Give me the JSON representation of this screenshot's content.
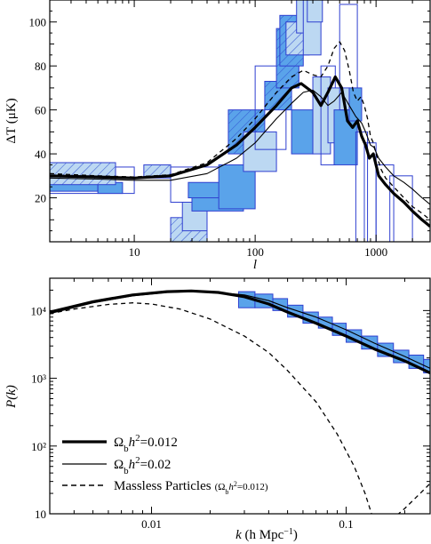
{
  "chart_data": [
    {
      "type": "line",
      "xlabel": "l",
      "ylabel_main": "ΔT",
      "ylabel_unit": " (μK)",
      "x_scale": "log",
      "xlim": [
        2,
        2800
      ],
      "ylim": [
        0,
        110
      ],
      "xtick_labels": [
        "10",
        "100",
        "1000"
      ],
      "xticks": [
        10,
        100,
        1000
      ],
      "ytick_labels": [
        "20",
        "40",
        "60",
        "80",
        "100"
      ],
      "yticks": [
        20,
        40,
        60,
        80,
        100
      ],
      "series": [
        {
          "style": "thick",
          "x": [
            2,
            5,
            10,
            20,
            40,
            70,
            100,
            150,
            200,
            240,
            300,
            350,
            400,
            460,
            520,
            580,
            640,
            700,
            760,
            820,
            880,
            950,
            1050,
            1200,
            1400,
            1700,
            2000,
            2400,
            2800
          ],
          "y": [
            30,
            29.5,
            29,
            30,
            35,
            44,
            52,
            62,
            70,
            72,
            68,
            62,
            68,
            75,
            70,
            55,
            52,
            55,
            48,
            44,
            38,
            40,
            30,
            26,
            22,
            18,
            14,
            10,
            7
          ]
        },
        {
          "style": "thin",
          "x": [
            2,
            5,
            10,
            20,
            40,
            70,
            100,
            150,
            200,
            250,
            300,
            350,
            400,
            450,
            520,
            600,
            680,
            760,
            820,
            900,
            960,
            1050,
            1200,
            1400,
            1700,
            2000,
            2400,
            2800
          ],
          "y": [
            29,
            28.5,
            28,
            28,
            31,
            38,
            45,
            56,
            63,
            68,
            69,
            66,
            62,
            64,
            68,
            62,
            57,
            54,
            50,
            44,
            43,
            38,
            34,
            30,
            27,
            24,
            20,
            17
          ]
        },
        {
          "style": "dashed",
          "x": [
            2,
            5,
            10,
            20,
            40,
            70,
            100,
            150,
            200,
            250,
            300,
            350,
            400,
            450,
            500,
            550,
            600,
            650,
            700,
            750,
            800,
            850,
            900,
            950,
            1000,
            1100,
            1200,
            1400,
            1700,
            2000,
            2400,
            2800
          ],
          "y": [
            31,
            30,
            29.5,
            30.5,
            36,
            47,
            56,
            68,
            75,
            78,
            76,
            75,
            80,
            88,
            91,
            87,
            78,
            68,
            64,
            66,
            62,
            56,
            48,
            45,
            40,
            33,
            29,
            25,
            20,
            16,
            13,
            10
          ]
        }
      ],
      "data_boxes": [
        {
          "x": [
            2,
            5
          ],
          "y": [
            23,
            34
          ],
          "fill": "medium",
          "hatch": false
        },
        {
          "x": [
            2,
            10
          ],
          "y": [
            22,
            34
          ],
          "fill": "none",
          "hatch": false
        },
        {
          "x": [
            5,
            8
          ],
          "y": [
            22,
            27
          ],
          "fill": "medium",
          "hatch": false
        },
        {
          "x": [
            2,
            7
          ],
          "y": [
            26,
            36
          ],
          "fill": "light",
          "hatch": true
        },
        {
          "x": [
            12,
            20
          ],
          "y": [
            29,
            35
          ],
          "fill": "light",
          "hatch": true
        },
        {
          "x": [
            20,
            40
          ],
          "y": [
            0,
            11
          ],
          "fill": "light",
          "hatch": true
        },
        {
          "x": [
            25,
            40
          ],
          "y": [
            5,
            18
          ],
          "fill": "light",
          "hatch": false
        },
        {
          "x": [
            20,
            70
          ],
          "y": [
            18,
            34
          ],
          "fill": "none",
          "hatch": false
        },
        {
          "x": [
            30,
            80
          ],
          "y": [
            14,
            25
          ],
          "fill": "medium",
          "hatch": false
        },
        {
          "x": [
            28,
            70
          ],
          "y": [
            20,
            27
          ],
          "fill": "medium",
          "hatch": false
        },
        {
          "x": [
            50,
            100
          ],
          "y": [
            15,
            35
          ],
          "fill": "medium",
          "hatch": false
        },
        {
          "x": [
            60,
            120
          ],
          "y": [
            40,
            60
          ],
          "fill": "medium",
          "hatch": true
        },
        {
          "x": [
            80,
            150
          ],
          "y": [
            32,
            50
          ],
          "fill": "light",
          "hatch": false
        },
        {
          "x": [
            100,
            180
          ],
          "y": [
            42,
            80
          ],
          "fill": "none",
          "hatch": false
        },
        {
          "x": [
            120,
            200
          ],
          "y": [
            60,
            73
          ],
          "fill": "medium",
          "hatch": true
        },
        {
          "x": [
            150,
            230
          ],
          "y": [
            70,
            97
          ],
          "fill": "medium",
          "hatch": true
        },
        {
          "x": [
            160,
            250
          ],
          "y": [
            80,
            103
          ],
          "fill": "medium",
          "hatch": true
        },
        {
          "x": [
            180,
            280
          ],
          "y": [
            85,
            100
          ],
          "fill": "light",
          "hatch": true
        },
        {
          "x": [
            200,
            300
          ],
          "y": [
            40,
            60
          ],
          "fill": "medium",
          "hatch": false
        },
        {
          "x": [
            220,
            330
          ],
          "y": [
            95,
            110
          ],
          "fill": "light",
          "hatch": false
        },
        {
          "x": [
            250,
            350
          ],
          "y": [
            85,
            110
          ],
          "fill": "light",
          "hatch": false
        },
        {
          "x": [
            270,
            360
          ],
          "y": [
            100,
            110
          ],
          "fill": "light",
          "hatch": false
        },
        {
          "x": [
            300,
            420
          ],
          "y": [
            40,
            75
          ],
          "fill": "light",
          "hatch": false
        },
        {
          "x": [
            350,
            460
          ],
          "y": [
            35,
            80
          ],
          "fill": "none",
          "hatch": false
        },
        {
          "x": [
            400,
            600
          ],
          "y": [
            45,
            70
          ],
          "fill": "light",
          "hatch": false
        },
        {
          "x": [
            450,
            700
          ],
          "y": [
            35,
            60
          ],
          "fill": "medium",
          "hatch": false
        },
        {
          "x": [
            500,
            700
          ],
          "y": [
            60,
            108
          ],
          "fill": "none",
          "hatch": false
        },
        {
          "x": [
            600,
            760
          ],
          "y": [
            55,
            70
          ],
          "fill": "medium",
          "hatch": false
        },
        {
          "x": [
            680,
            850
          ],
          "y": [
            0,
            50
          ],
          "fill": "none",
          "hatch": false
        },
        {
          "x": [
            800,
            1000
          ],
          "y": [
            0,
            45
          ],
          "fill": "none",
          "hatch": false
        },
        {
          "x": [
            1000,
            1400
          ],
          "y": [
            0,
            35
          ],
          "fill": "none",
          "hatch": false
        },
        {
          "x": [
            1300,
            2000
          ],
          "y": [
            0,
            30
          ],
          "fill": "none",
          "hatch": false
        }
      ]
    },
    {
      "type": "line",
      "xlabel": "k (h Mpc⁻¹)",
      "xlabel_k": "k",
      "xlabel_rest": " (h Mpc",
      "xlabel_sup": "−1",
      "xlabel_close": ")",
      "ylabel": "P(k)",
      "x_scale": "log",
      "y_scale": "log",
      "xlim": [
        0.003,
        0.27
      ],
      "ylim": [
        10,
        30000
      ],
      "xtick_labels": [
        "0.01",
        "0.1"
      ],
      "xticks": [
        0.01,
        0.1
      ],
      "ytick_labels": [
        "10",
        "10²",
        "10³",
        "10⁴"
      ],
      "yticks": [
        10,
        100,
        1000,
        10000
      ],
      "legend_position": "bottom-left",
      "series": [
        {
          "name": "Ωbh²=0.012",
          "style": "thick",
          "x": [
            0.003,
            0.005,
            0.008,
            0.012,
            0.016,
            0.022,
            0.03,
            0.04,
            0.05,
            0.07,
            0.1,
            0.14,
            0.2,
            0.27
          ],
          "y": [
            9500,
            13500,
            17000,
            19000,
            19500,
            18500,
            16000,
            12500,
            9500,
            6500,
            4200,
            2700,
            1800,
            1200
          ]
        },
        {
          "name": "Ωbh²=0.02",
          "style": "thin",
          "x": [
            0.003,
            0.005,
            0.008,
            0.012,
            0.016,
            0.022,
            0.03,
            0.04,
            0.05,
            0.07,
            0.1,
            0.14,
            0.2,
            0.27
          ],
          "y": [
            9000,
            13000,
            16500,
            18500,
            19000,
            18500,
            17000,
            14000,
            11000,
            8000,
            5200,
            3300,
            2100,
            1400
          ]
        },
        {
          "name": "Massless Particles",
          "name_note": "(Ωbh²=0.012)",
          "style": "dashed",
          "x": [
            0.003,
            0.004,
            0.006,
            0.008,
            0.01,
            0.014,
            0.02,
            0.03,
            0.04,
            0.05,
            0.07,
            0.09,
            0.11,
            0.125,
            0.135,
            0.15,
            0.17,
            0.2,
            0.24,
            0.27
          ],
          "y": [
            9000,
            10500,
            12300,
            13000,
            12500,
            10500,
            7500,
            4200,
            2400,
            1300,
            450,
            150,
            50,
            20,
            10,
            6,
            8,
            12,
            20,
            28
          ]
        }
      ],
      "data_boxes": [
        {
          "x": [
            0.028,
            0.034
          ],
          "y": [
            11000,
            19000
          ]
        },
        {
          "x": [
            0.034,
            0.042
          ],
          "y": [
            11000,
            17500
          ]
        },
        {
          "x": [
            0.042,
            0.05
          ],
          "y": [
            10000,
            15000
          ]
        },
        {
          "x": [
            0.05,
            0.06
          ],
          "y": [
            8000,
            12000
          ]
        },
        {
          "x": [
            0.06,
            0.072
          ],
          "y": [
            6500,
            9500
          ]
        },
        {
          "x": [
            0.072,
            0.085
          ],
          "y": [
            5500,
            8000
          ]
        },
        {
          "x": [
            0.085,
            0.1
          ],
          "y": [
            4300,
            6500
          ]
        },
        {
          "x": [
            0.1,
            0.12
          ],
          "y": [
            3400,
            5200
          ]
        },
        {
          "x": [
            0.12,
            0.145
          ],
          "y": [
            2700,
            4200
          ]
        },
        {
          "x": [
            0.145,
            0.175
          ],
          "y": [
            2100,
            3300
          ]
        },
        {
          "x": [
            0.175,
            0.21
          ],
          "y": [
            1700,
            2600
          ]
        },
        {
          "x": [
            0.21,
            0.25
          ],
          "y": [
            1400,
            2200
          ]
        },
        {
          "x": [
            0.25,
            0.27
          ],
          "y": [
            1200,
            1900
          ]
        }
      ],
      "legend": [
        {
          "prefix": "Ω",
          "sub": "b",
          "mid": "h",
          "sup": "2",
          "suffix": "=0.012"
        },
        {
          "prefix": "Ω",
          "sub": "b",
          "mid": "h",
          "sup": "2",
          "suffix": "=0.02"
        },
        {
          "text": "Massless Particles",
          "note_prefix": "(Ω",
          "note_sub": "b",
          "note_mid": "h",
          "note_sup": "2",
          "note_suffix": "=0.012)"
        }
      ]
    }
  ]
}
